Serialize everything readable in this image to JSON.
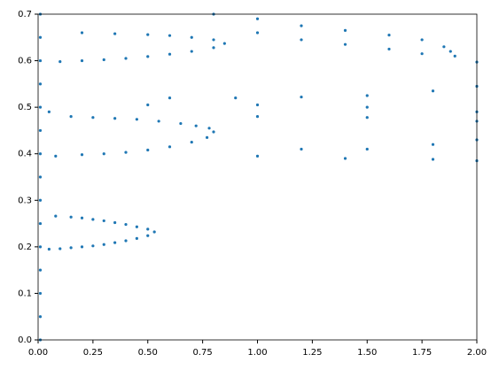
{
  "chart_data": {
    "type": "scatter",
    "color": "#1f77b4",
    "x": [
      0.01,
      0.01,
      0.01,
      0.01,
      0.01,
      0.01,
      0.01,
      0.01,
      0.01,
      0.01,
      0.01,
      0.01,
      0.01,
      0.01,
      0.01,
      0.05,
      0.1,
      0.15,
      0.2,
      0.25,
      0.3,
      0.35,
      0.4,
      0.45,
      0.5,
      0.53,
      0.08,
      0.15,
      0.2,
      0.25,
      0.3,
      0.35,
      0.4,
      0.45,
      0.5,
      0.08,
      0.2,
      0.3,
      0.4,
      0.5,
      0.6,
      0.7,
      0.77,
      0.8,
      0.05,
      0.15,
      0.25,
      0.35,
      0.45,
      0.55,
      0.65,
      0.72,
      0.78,
      0.1,
      0.2,
      0.3,
      0.4,
      0.5,
      0.6,
      0.7,
      0.8,
      0.85,
      0.2,
      0.35,
      0.5,
      0.6,
      0.7,
      0.8,
      0.8,
      1.0,
      1.2,
      1.4,
      1.6,
      1.75,
      1.85,
      1.0,
      1.2,
      1.4,
      1.6,
      1.75,
      1.88,
      1.9,
      2.0,
      0.6,
      0.9,
      1.2,
      1.5,
      1.8,
      2.0,
      0.5,
      1.0,
      1.5,
      2.0,
      1.2,
      1.5,
      1.8,
      2.0,
      1.0,
      1.4,
      1.8,
      2.0,
      1.0,
      1.5,
      2.0
    ],
    "values": [
      0,
      0.05,
      0.1,
      0.15,
      0.2,
      0.25,
      0.3,
      0.35,
      0.4,
      0.45,
      0.5,
      0.55,
      0.6,
      0.65,
      0.7,
      0.195,
      0.196,
      0.198,
      0.2,
      0.202,
      0.205,
      0.209,
      0.213,
      0.218,
      0.224,
      0.232,
      0.266,
      0.264,
      0.262,
      0.259,
      0.256,
      0.252,
      0.248,
      0.243,
      0.238,
      0.395,
      0.398,
      0.4,
      0.403,
      0.408,
      0.415,
      0.425,
      0.435,
      0.447,
      0.49,
      0.48,
      0.478,
      0.476,
      0.474,
      0.47,
      0.465,
      0.46,
      0.455,
      0.598,
      0.6,
      0.602,
      0.605,
      0.609,
      0.614,
      0.62,
      0.628,
      0.637,
      0.66,
      0.658,
      0.656,
      0.654,
      0.65,
      0.645,
      0.7,
      0.69,
      0.675,
      0.665,
      0.655,
      0.645,
      0.63,
      0.66,
      0.645,
      0.635,
      0.625,
      0.615,
      0.62,
      0.61,
      0.597,
      0.52,
      0.52,
      0.522,
      0.525,
      0.535,
      0.545,
      0.505,
      0.505,
      0.5,
      0.49,
      0.41,
      0.41,
      0.42,
      0.43,
      0.395,
      0.39,
      0.388,
      0.385,
      0.48,
      0.478,
      0.47
    ],
    "xlim": [
      0,
      2
    ],
    "ylim": [
      0,
      0.7
    ],
    "xticks": [
      {
        "value": 0,
        "label": "0.00"
      },
      0.25,
      {
        "value": 0.5,
        "label": "0.50"
      },
      0.75,
      {
        "value": 1,
        "label": "1.00"
      },
      1.25,
      {
        "value": 1.5,
        "label": "1.50"
      },
      1.75,
      {
        "value": 2,
        "label": "2.00"
      }
    ],
    "yticks": [
      {
        "value": 0,
        "label": "0.0"
      },
      0.1,
      0.2,
      0.3,
      0.4,
      0.5,
      0.6,
      0.7
    ]
  }
}
